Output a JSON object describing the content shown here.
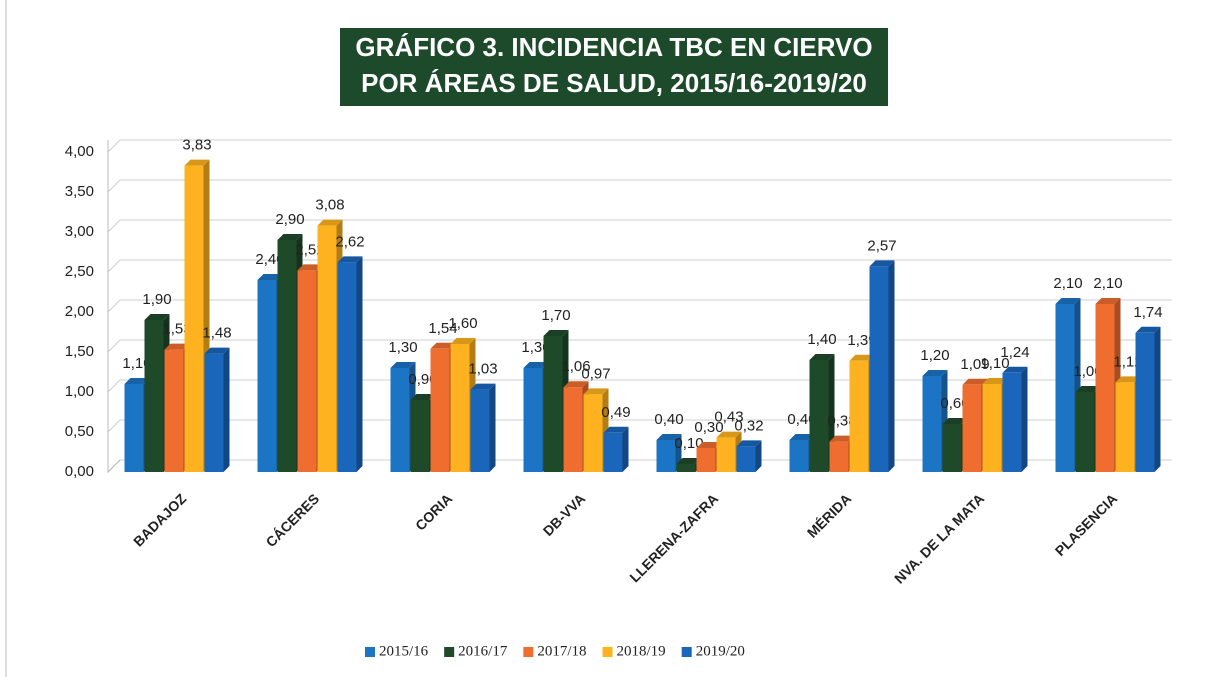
{
  "chart_data": {
    "type": "bar",
    "title": [
      "GRÁFICO 3.  INCIDENCIA TBC EN CIERVO",
      "POR ÁREAS DE SALUD, 2015/16-2019/20"
    ],
    "categories": [
      "BADAJOZ",
      "CÁCERES",
      "CORIA",
      "DB-VVA",
      "LLERENA-ZAFRA",
      "MÉRIDA",
      "NVA. DE LA MATA",
      "PLASENCIA"
    ],
    "series": [
      {
        "name": "2015/16",
        "color": "#1c75c4",
        "values": [
          1.1,
          2.4,
          1.3,
          1.3,
          0.4,
          0.4,
          1.2,
          2.1
        ],
        "value_labels": [
          "1,10",
          "2,40",
          "1,30",
          "1,30",
          "0,40",
          "0,40",
          "1,20",
          "2,10"
        ]
      },
      {
        "name": "2016/17",
        "color": "#1e4a2a",
        "values": [
          1.9,
          2.9,
          0.9,
          1.7,
          0.1,
          1.4,
          0.6,
          1.0
        ],
        "value_labels": [
          "1,90",
          "2,90",
          "0,90",
          "1,70",
          "0,10",
          "1,40",
          "0,60",
          "1,00"
        ]
      },
      {
        "name": "2017/18",
        "color": "#ef6e2f",
        "values": [
          1.53,
          2.52,
          1.54,
          1.06,
          0.3,
          0.38,
          1.09,
          2.1
        ],
        "value_labels": [
          "1,53",
          "2,52",
          "1,54",
          "1,06",
          "0,30",
          "0,38",
          "1,09",
          "2,10"
        ]
      },
      {
        "name": "2018/19",
        "color": "#ffb21f",
        "values": [
          3.83,
          3.08,
          1.6,
          0.97,
          0.43,
          1.39,
          1.1,
          1.12
        ],
        "value_labels": [
          "3,83",
          "3,08",
          "1,60",
          "0,97",
          "0,43",
          "1,39",
          "1,10",
          "1,12"
        ]
      },
      {
        "name": "2019/20",
        "color": "#1a66bb",
        "values": [
          1.48,
          2.62,
          1.03,
          0.49,
          0.32,
          2.57,
          1.24,
          1.74
        ],
        "value_labels": [
          "1,48",
          "2,62",
          "1,03",
          "0,49",
          "0,32",
          "2,57",
          "1,24",
          "1,74"
        ]
      }
    ],
    "ylim": [
      0,
      4
    ],
    "yticks": [
      {
        "value": 0,
        "label": "0,00"
      },
      {
        "value": 0.5,
        "label": "0,50"
      },
      {
        "value": 1,
        "label": "1,00"
      },
      {
        "value": 1.5,
        "label": "1,50"
      },
      {
        "value": 2,
        "label": "2,00"
      },
      {
        "value": 2.5,
        "label": "2,50"
      },
      {
        "value": 3,
        "label": "3,00"
      },
      {
        "value": 3.5,
        "label": "3,50"
      },
      {
        "value": 4,
        "label": "4,00"
      }
    ],
    "grid": true,
    "legend": "bottom"
  }
}
